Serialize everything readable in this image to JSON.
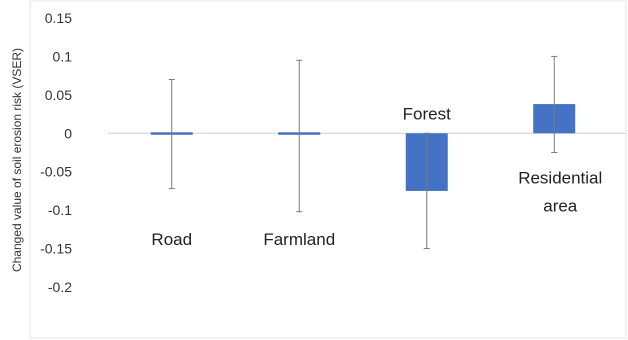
{
  "chart_data": {
    "type": "bar",
    "title": "",
    "xlabel": "",
    "ylabel": "Changed value of soil erosion risk (VSER)",
    "ylim": [
      -0.2,
      0.15
    ],
    "yticks": [
      0.15,
      0.1,
      0.05,
      0,
      -0.05,
      -0.1,
      -0.15,
      -0.2
    ],
    "grid": false,
    "legend": "none",
    "bar_color": "#4472c4",
    "categories": [
      {
        "name": "Road",
        "lines": [
          "Road"
        ],
        "value": 0.0,
        "err_low": -0.072,
        "err_high": 0.07
      },
      {
        "name": "Farmland",
        "lines": [
          "Farmland"
        ],
        "value": -0.003,
        "err_low": -0.102,
        "err_high": 0.095
      },
      {
        "name": "Forest",
        "lines": [
          "Forest"
        ],
        "value": -0.075,
        "err_low": -0.15,
        "err_high": 0.0
      },
      {
        "name": "Residential area",
        "lines": [
          "Residential",
          "area"
        ],
        "value": 0.038,
        "err_low": -0.025,
        "err_high": 0.1
      }
    ]
  }
}
